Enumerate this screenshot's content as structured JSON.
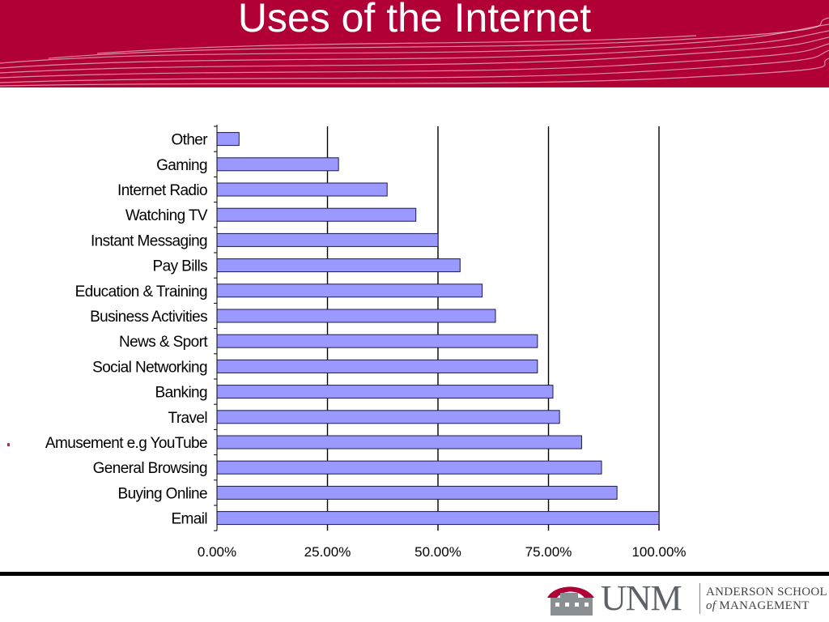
{
  "slide": {
    "title": "Uses of the Internet"
  },
  "colors": {
    "header_bg": "#b10035",
    "bar_fill": "#9999ff",
    "bar_stroke": "#1a1a4d",
    "logo_accent": "#b10035"
  },
  "logo": {
    "name": "UNM",
    "school_line1": "ANDERSON SCHOOL",
    "school_of": "of",
    "school_line2": "MANAGEMENT"
  },
  "chart_data": {
    "type": "bar",
    "orientation": "horizontal",
    "categories": [
      "Other",
      "Gaming",
      "Internet Radio",
      "Watching TV",
      "Instant Messaging",
      "Pay Bills",
      "Education & Training",
      "Business Activities",
      "News & Sport",
      "Social Networking",
      "Banking",
      "Travel",
      "Amusement e.g YouTube",
      "General Browsing",
      "Buying Online",
      "Email"
    ],
    "values": [
      5,
      27.5,
      38.5,
      45,
      50,
      55,
      60,
      63,
      72.5,
      72.5,
      76,
      77.5,
      82.5,
      87,
      90.5,
      100
    ],
    "xlim": [
      0,
      100
    ],
    "xticks": [
      0,
      25,
      50,
      75,
      100
    ],
    "xtick_labels": [
      "0.00%",
      "25.00%",
      "50.00%",
      "75.00%",
      "100.00%"
    ],
    "grid": "vertical",
    "legend": "none",
    "title": "",
    "xlabel": "",
    "ylabel": ""
  }
}
